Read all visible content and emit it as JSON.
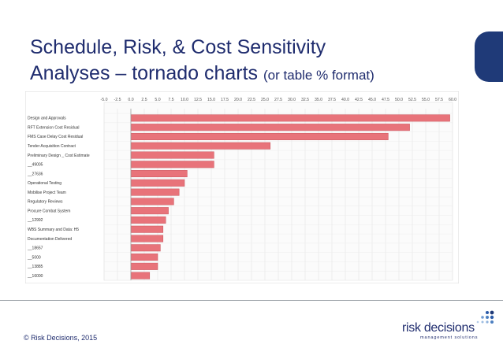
{
  "slide": {
    "title_line1": "Schedule, Risk, & Cost Sensitivity",
    "title_line2": "Analyses – tornado charts",
    "title_note": "(or table % format)",
    "copyright": "© Risk Decisions, 2015",
    "logo_name": "risk decisions",
    "logo_tagline": "management solutions"
  },
  "colors": {
    "title": "#1f2c6e",
    "bar": "#e8737a",
    "bar_edge": "#c9545c",
    "tab": "#1f3a78"
  },
  "chart_data": {
    "type": "bar",
    "orientation": "horizontal",
    "xlim": [
      -5.0,
      60.0
    ],
    "x_ticks": [
      "-5.0",
      "-2.5",
      "0.0",
      "2.5",
      "5.0",
      "7.5",
      "10.0",
      "12.5",
      "15.0",
      "17.5",
      "20.0",
      "22.5",
      "25.0",
      "27.5",
      "30.0",
      "32.5",
      "35.0",
      "37.5",
      "40.0",
      "42.5",
      "45.0",
      "47.5",
      "50.0",
      "52.5",
      "55.0",
      "57.5",
      "60.0"
    ],
    "x_tick_position": "top",
    "grid": true,
    "categories": [
      "Design and Approvals",
      "RFT Extension Cost Residual",
      "FMS Case Delay Cost Residual",
      "Tender Acquisition Contract",
      "Preliminary Design _ Cost Estimate",
      "__49005",
      "__27636",
      "Operational Testing",
      "Mobilise Project Team",
      "Regulatory Reviews",
      "Procure Combat System",
      "__12992",
      "WBS Summary and Data: H5",
      "Documentation Delivered",
      "__18657",
      "__5000",
      "__13885",
      "__16000"
    ],
    "values": [
      59.5,
      52.0,
      48.0,
      26.0,
      15.5,
      15.5,
      10.5,
      10.0,
      9.0,
      8.0,
      7.0,
      6.5,
      6.0,
      6.0,
      5.5,
      5.0,
      5.0,
      3.5
    ]
  }
}
